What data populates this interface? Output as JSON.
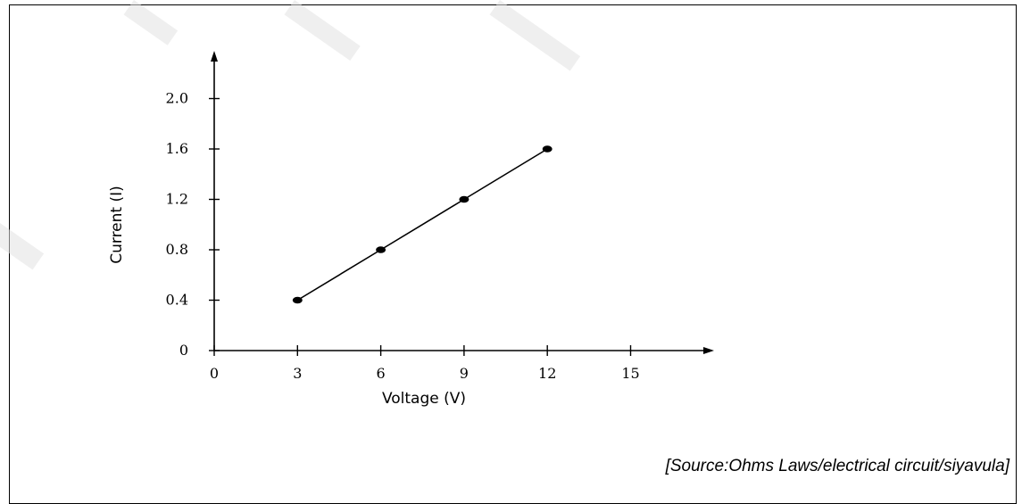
{
  "source_note": "[Source:Ohms Laws/electrical circuit/siyavula]",
  "chart_data": {
    "type": "line",
    "title": "",
    "xlabel": "Voltage (V)",
    "ylabel": "Current (I)",
    "xlim": [
      0,
      18
    ],
    "ylim": [
      0,
      2.3
    ],
    "x_ticks": [
      0,
      3,
      6,
      9,
      12,
      15
    ],
    "x_tick_labels": [
      "0",
      "3",
      "6",
      "9",
      "12",
      "15"
    ],
    "y_ticks": [
      0,
      0.4,
      0.8,
      1.2,
      1.6,
      2.0
    ],
    "y_tick_labels": [
      "0",
      "0.4",
      "0.8",
      "1.2",
      "1.6",
      "2.0"
    ],
    "grid": false,
    "legend": "none",
    "series": [
      {
        "x": [
          3,
          6,
          9,
          12
        ],
        "y": [
          0.4,
          0.8,
          1.2,
          1.6
        ]
      }
    ],
    "line_color": "#000000"
  }
}
